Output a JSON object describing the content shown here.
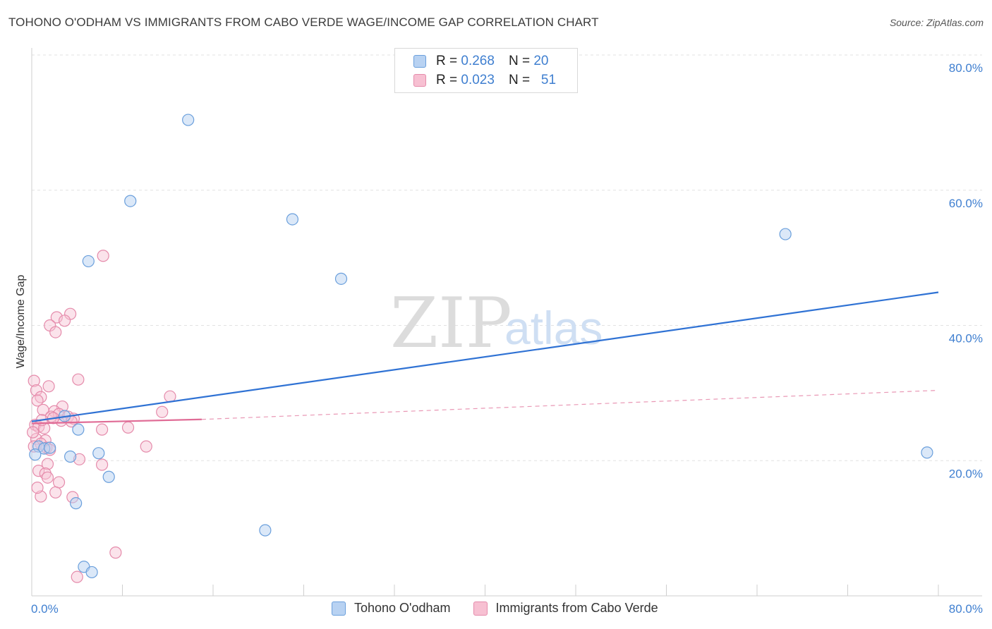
{
  "title": "TOHONO O'ODHAM VS IMMIGRANTS FROM CABO VERDE WAGE/INCOME GAP CORRELATION CHART",
  "source": "Source: ZipAtlas.com",
  "watermark": {
    "zip": "ZIP",
    "atlas": "atlas"
  },
  "legend": {
    "r_label": "R =",
    "n_label": "N =",
    "series1": {
      "r": "0.268",
      "n": "20"
    },
    "series2": {
      "r": "0.023",
      "n": "51"
    }
  },
  "colors": {
    "blue_fill": "#b8d2f2",
    "blue_stroke": "#6a9fdc",
    "blue_line": "#2f72d4",
    "pink_fill": "#f7c0d2",
    "pink_stroke": "#e58bab",
    "pink_line": "#e06c96"
  },
  "chart_data": {
    "type": "scatter",
    "title": "TOHONO O'ODHAM VS IMMIGRANTS FROM CABO VERDE WAGE/INCOME GAP CORRELATION CHART",
    "xlabel": "",
    "ylabel": "Wage/Income Gap",
    "xlim": [
      0,
      80
    ],
    "ylim": [
      0,
      80
    ],
    "x_tick_labels": [
      "0.0%",
      "80.0%"
    ],
    "y_tick_labels": [
      "20.0%",
      "40.0%",
      "60.0%",
      "80.0%"
    ],
    "y_ticks": [
      20,
      40,
      60,
      80
    ],
    "grid": true,
    "legend_position": "bottom-center",
    "series": [
      {
        "name": "Tohono O'odham",
        "color": "#6a9fdc",
        "trend": {
          "x": [
            0,
            80
          ],
          "y": [
            25.8,
            44.9
          ],
          "dashed_extension": false
        },
        "points": [
          {
            "x": 13.8,
            "y": 70.4
          },
          {
            "x": 8.7,
            "y": 58.4
          },
          {
            "x": 23.0,
            "y": 55.7
          },
          {
            "x": 5.0,
            "y": 49.5
          },
          {
            "x": 27.3,
            "y": 46.9
          },
          {
            "x": 66.5,
            "y": 53.5
          },
          {
            "x": 2.9,
            "y": 26.6
          },
          {
            "x": 4.1,
            "y": 24.6
          },
          {
            "x": 0.6,
            "y": 22.1
          },
          {
            "x": 1.1,
            "y": 21.8
          },
          {
            "x": 1.6,
            "y": 21.9
          },
          {
            "x": 0.3,
            "y": 20.9
          },
          {
            "x": 3.4,
            "y": 20.6
          },
          {
            "x": 5.9,
            "y": 21.1
          },
          {
            "x": 6.8,
            "y": 17.6
          },
          {
            "x": 3.9,
            "y": 13.7
          },
          {
            "x": 20.6,
            "y": 9.7
          },
          {
            "x": 4.6,
            "y": 4.3
          },
          {
            "x": 5.3,
            "y": 3.5
          },
          {
            "x": 79.0,
            "y": 21.2
          }
        ]
      },
      {
        "name": "Immigrants from Cabo Verde",
        "color": "#e58bab",
        "trend": {
          "x": [
            0,
            15
          ],
          "y": [
            25.5,
            26.1
          ],
          "dashed_extension": true,
          "dashed_to": {
            "x": 80,
            "y": 30.4
          }
        },
        "points": [
          {
            "x": 6.3,
            "y": 50.3
          },
          {
            "x": 3.4,
            "y": 41.7
          },
          {
            "x": 2.2,
            "y": 41.2
          },
          {
            "x": 2.9,
            "y": 40.7
          },
          {
            "x": 1.6,
            "y": 40.0
          },
          {
            "x": 2.1,
            "y": 39.0
          },
          {
            "x": 0.2,
            "y": 31.8
          },
          {
            "x": 4.1,
            "y": 32.0
          },
          {
            "x": 1.5,
            "y": 31.0
          },
          {
            "x": 0.4,
            "y": 30.4
          },
          {
            "x": 0.8,
            "y": 29.4
          },
          {
            "x": 0.5,
            "y": 28.9
          },
          {
            "x": 12.2,
            "y": 29.5
          },
          {
            "x": 2.7,
            "y": 28.0
          },
          {
            "x": 1.0,
            "y": 27.5
          },
          {
            "x": 2.0,
            "y": 27.3
          },
          {
            "x": 2.4,
            "y": 26.9
          },
          {
            "x": 11.5,
            "y": 27.2
          },
          {
            "x": 1.7,
            "y": 26.5
          },
          {
            "x": 3.2,
            "y": 26.5
          },
          {
            "x": 3.7,
            "y": 26.2
          },
          {
            "x": 3.5,
            "y": 25.8
          },
          {
            "x": 0.3,
            "y": 25.3
          },
          {
            "x": 0.6,
            "y": 25.0
          },
          {
            "x": 1.1,
            "y": 24.8
          },
          {
            "x": 6.2,
            "y": 24.6
          },
          {
            "x": 8.5,
            "y": 24.9
          },
          {
            "x": 0.4,
            "y": 23.2
          },
          {
            "x": 1.2,
            "y": 23.0
          },
          {
            "x": 0.8,
            "y": 22.5
          },
          {
            "x": 0.2,
            "y": 22.1
          },
          {
            "x": 1.3,
            "y": 21.9
          },
          {
            "x": 1.6,
            "y": 21.6
          },
          {
            "x": 10.1,
            "y": 22.1
          },
          {
            "x": 4.2,
            "y": 20.2
          },
          {
            "x": 6.2,
            "y": 19.4
          },
          {
            "x": 1.4,
            "y": 19.5
          },
          {
            "x": 0.6,
            "y": 18.5
          },
          {
            "x": 1.2,
            "y": 18.1
          },
          {
            "x": 1.4,
            "y": 17.5
          },
          {
            "x": 2.4,
            "y": 16.8
          },
          {
            "x": 2.1,
            "y": 15.3
          },
          {
            "x": 0.8,
            "y": 14.7
          },
          {
            "x": 3.6,
            "y": 14.6
          },
          {
            "x": 7.4,
            "y": 6.4
          },
          {
            "x": 4.0,
            "y": 2.8
          },
          {
            "x": 0.5,
            "y": 16.0
          },
          {
            "x": 2.6,
            "y": 25.9
          },
          {
            "x": 0.9,
            "y": 26.0
          },
          {
            "x": 1.9,
            "y": 26.3
          },
          {
            "x": 0.1,
            "y": 24.2
          }
        ]
      }
    ]
  }
}
